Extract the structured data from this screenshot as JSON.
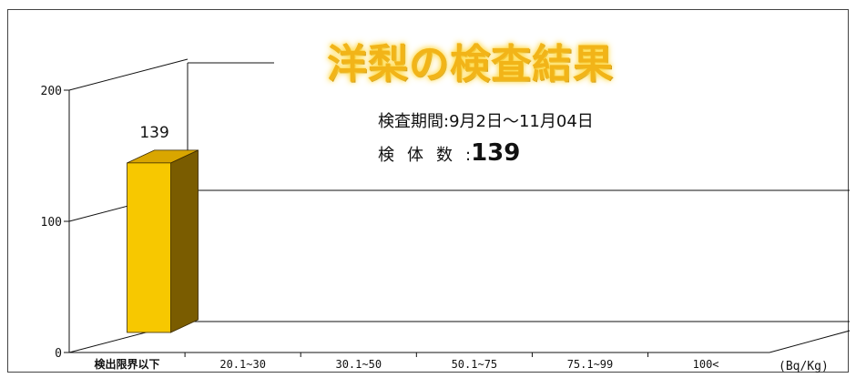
{
  "title": "洋梨の検査結果",
  "info": {
    "period_label": "検査期間:",
    "period_value": "9月2日～11月04日",
    "count_label": "検体数",
    "count_separator": ":",
    "count_value": "139"
  },
  "colors": {
    "bar_front": "#f7c800",
    "bar_side": "#7a5c00",
    "bar_top": "#d9a600",
    "title": "#f2b418"
  },
  "chart_data": {
    "type": "bar",
    "title": "洋梨の検査結果",
    "categories": [
      "検出限界以下",
      "20.1~30",
      "30.1~50",
      "50.1~75",
      "75.1~99",
      "100<"
    ],
    "values": [
      139,
      0,
      0,
      0,
      0,
      0
    ],
    "data_labels": [
      "139",
      "",
      "",
      "",
      "",
      ""
    ],
    "y_ticks": [
      "0",
      "100",
      "200"
    ],
    "ylim": [
      0,
      200
    ],
    "unit": "(Bq/Kg)",
    "grid": true,
    "style": "3d"
  }
}
